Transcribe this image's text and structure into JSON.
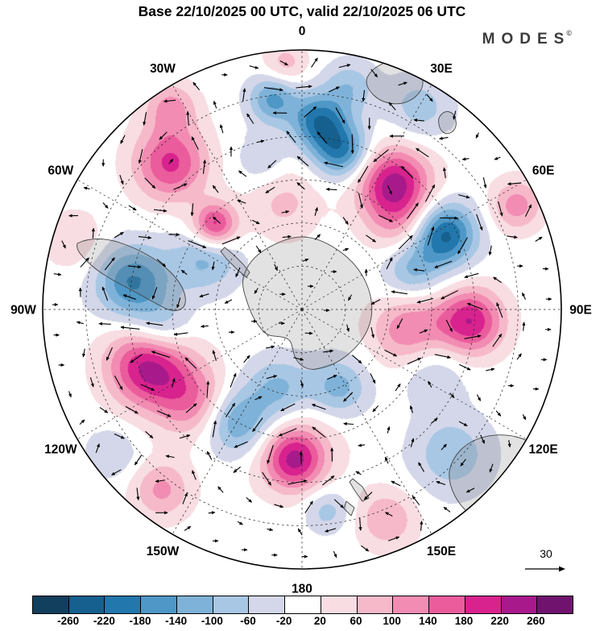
{
  "header": {
    "title": "Base 22/10/2025 00 UTC, valid 22/10/2025 06 UTC",
    "logo": "MODES",
    "logo_mark": "©"
  },
  "chart_data": {
    "type": "heatmap",
    "subtype": "filled-contour anomaly field with wind vectors",
    "projection": "south-polar-stereographic",
    "title": "Base 22/10/2025 00 UTC, valid 22/10/2025 06 UTC",
    "longitude_labels": [
      "0",
      "30E",
      "60E",
      "90E",
      "120E",
      "150E",
      "180",
      "150W",
      "120W",
      "90W",
      "60W",
      "30W"
    ],
    "latitude_circles": 5,
    "grid": "dashed graticule every 30 degrees longitude",
    "map_features": [
      "Antarctica",
      "Antarctic Peninsula",
      "South America",
      "Africa",
      "Madagascar",
      "Australia",
      "New Zealand"
    ],
    "reference_vector": {
      "label": "30"
    },
    "colorbar": {
      "ticks": [
        "-260",
        "-220",
        "-180",
        "-140",
        "-100",
        "-60",
        "-20",
        "20",
        "60",
        "100",
        "140",
        "180",
        "220",
        "260"
      ],
      "tick_values": [
        -260,
        -220,
        -180,
        -140,
        -100,
        -60,
        -20,
        20,
        60,
        100,
        140,
        180,
        220,
        260
      ],
      "colors": [
        "#123f5e",
        "#15608f",
        "#2277ac",
        "#4e97c6",
        "#7fb2d8",
        "#a8c7e4",
        "#d3d7e9",
        "#ffffff",
        "#f8dde2",
        "#f6b9ca",
        "#f28cb2",
        "#ea5c9c",
        "#d8238f",
        "#a81a8b",
        "#70136f"
      ]
    },
    "anomaly_centers": [
      {
        "angle_deg": 352,
        "radius_frac": 0.82,
        "amplitude": -150,
        "sigma_frac": 0.065
      },
      {
        "angle_deg": 5,
        "radius_frac": 0.73,
        "amplitude": -200,
        "sigma_frac": 0.075
      },
      {
        "angle_deg": 14,
        "radius_frac": 0.63,
        "amplitude": -190,
        "sigma_frac": 0.075
      },
      {
        "angle_deg": 12,
        "radius_frac": 0.88,
        "amplitude": -90,
        "sigma_frac": 0.07
      },
      {
        "angle_deg": 30,
        "radius_frac": 0.9,
        "amplitude": -80,
        "sigma_frac": 0.09
      },
      {
        "angle_deg": 36,
        "radius_frac": 0.6,
        "amplitude": 235,
        "sigma_frac": 0.1
      },
      {
        "angle_deg": 50,
        "radius_frac": 0.5,
        "amplitude": 80,
        "sigma_frac": 0.09
      },
      {
        "angle_deg": 62,
        "radius_frac": 0.62,
        "amplitude": -235,
        "sigma_frac": 0.085
      },
      {
        "angle_deg": 70,
        "radius_frac": 0.45,
        "amplitude": -110,
        "sigma_frac": 0.08
      },
      {
        "angle_deg": 64,
        "radius_frac": 0.92,
        "amplitude": 120,
        "sigma_frac": 0.07
      },
      {
        "angle_deg": 94,
        "radius_frac": 0.65,
        "amplitude": 215,
        "sigma_frac": 0.09
      },
      {
        "angle_deg": 101,
        "radius_frac": 0.42,
        "amplitude": 140,
        "sigma_frac": 0.1
      },
      {
        "angle_deg": 115,
        "radius_frac": 0.55,
        "amplitude": -70,
        "sigma_frac": 0.09
      },
      {
        "angle_deg": 134,
        "radius_frac": 0.8,
        "amplitude": -90,
        "sigma_frac": 0.11
      },
      {
        "angle_deg": 155,
        "radius_frac": 0.33,
        "amplitude": -120,
        "sigma_frac": 0.08
      },
      {
        "angle_deg": 158,
        "radius_frac": 0.87,
        "amplitude": 100,
        "sigma_frac": 0.08
      },
      {
        "angle_deg": 173,
        "radius_frac": 0.78,
        "amplitude": -80,
        "sigma_frac": 0.06
      },
      {
        "angle_deg": 183,
        "radius_frac": 0.58,
        "amplitude": 190,
        "sigma_frac": 0.08
      },
      {
        "angle_deg": 185,
        "radius_frac": 0.5,
        "amplitude": 60,
        "sigma_frac": 0.14
      },
      {
        "angle_deg": 196,
        "radius_frac": 0.32,
        "amplitude": -120,
        "sigma_frac": 0.09
      },
      {
        "angle_deg": 210,
        "radius_frac": 0.5,
        "amplitude": -160,
        "sigma_frac": 0.09
      },
      {
        "angle_deg": 218,
        "radius_frac": 0.88,
        "amplitude": 110,
        "sigma_frac": 0.08
      },
      {
        "angle_deg": 230,
        "radius_frac": 0.55,
        "amplitude": 130,
        "sigma_frac": 0.1
      },
      {
        "angle_deg": 233,
        "radius_frac": 0.92,
        "amplitude": -60,
        "sigma_frac": 0.07
      },
      {
        "angle_deg": 250,
        "radius_frac": 0.63,
        "amplitude": 240,
        "sigma_frac": 0.11
      },
      {
        "angle_deg": 262,
        "radius_frac": 0.55,
        "amplitude": -100,
        "sigma_frac": 0.08
      },
      {
        "angle_deg": 279,
        "radius_frac": 0.66,
        "amplitude": -185,
        "sigma_frac": 0.1
      },
      {
        "angle_deg": 287,
        "radius_frac": 0.92,
        "amplitude": 60,
        "sigma_frac": 0.08
      },
      {
        "angle_deg": 298,
        "radius_frac": 0.42,
        "amplitude": -110,
        "sigma_frac": 0.09
      },
      {
        "angle_deg": 314,
        "radius_frac": 0.47,
        "amplitude": 210,
        "sigma_frac": 0.06
      },
      {
        "angle_deg": 318,
        "radius_frac": 0.76,
        "amplitude": 190,
        "sigma_frac": 0.1
      },
      {
        "angle_deg": 327,
        "radius_frac": 0.93,
        "amplitude": 110,
        "sigma_frac": 0.07
      },
      {
        "angle_deg": 345,
        "radius_frac": 0.6,
        "amplitude": -60,
        "sigma_frac": 0.07
      },
      {
        "angle_deg": 350,
        "radius_frac": 0.42,
        "amplitude": 70,
        "sigma_frac": 0.1
      },
      {
        "angle_deg": 356,
        "radius_frac": 0.95,
        "amplitude": 80,
        "sigma_frac": 0.06
      }
    ]
  }
}
